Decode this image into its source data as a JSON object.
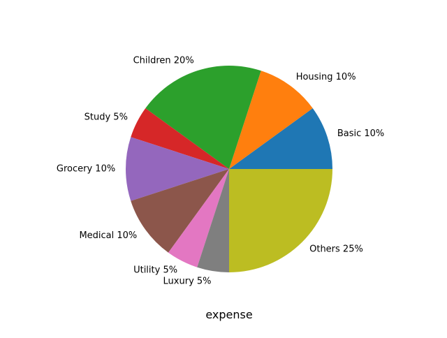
{
  "chart_data": {
    "type": "pie",
    "xlabel": "expense",
    "slices": [
      {
        "label": "Basic 10%",
        "value": 10,
        "color": "#1f77b4"
      },
      {
        "label": "Housing 10%",
        "value": 10,
        "color": "#ff7f0e"
      },
      {
        "label": "Children 20%",
        "value": 20,
        "color": "#2ca02c"
      },
      {
        "label": "Study 5%",
        "value": 5,
        "color": "#d62728"
      },
      {
        "label": "Grocery 10%",
        "value": 10,
        "color": "#9467bd"
      },
      {
        "label": "Medical 10%",
        "value": 10,
        "color": "#8c564b"
      },
      {
        "label": "Utility 5%",
        "value": 5,
        "color": "#e377c2"
      },
      {
        "label": "Luxury 5%",
        "value": 5,
        "color": "#7f7f7f"
      },
      {
        "label": "Others 25%",
        "value": 25,
        "color": "#bcbd22"
      }
    ]
  }
}
